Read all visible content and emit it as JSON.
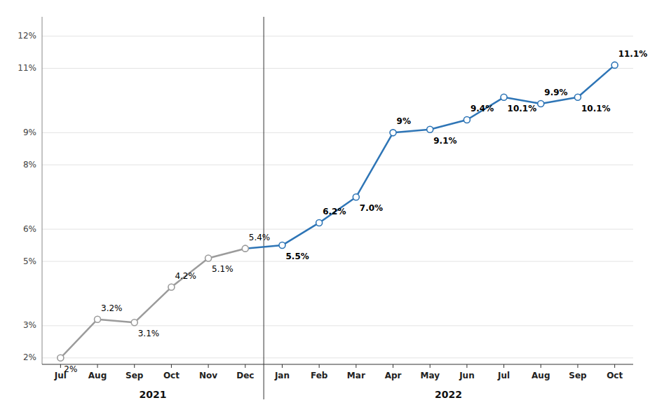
{
  "chart_data": {
    "type": "line",
    "categories": [
      "Jul",
      "Aug",
      "Sep",
      "Oct",
      "Nov",
      "Dec",
      "Jan",
      "Feb",
      "Mar",
      "Apr",
      "May",
      "Jun",
      "Jul",
      "Aug",
      "Sep",
      "Oct"
    ],
    "values": [
      2.0,
      3.2,
      3.1,
      4.2,
      5.1,
      5.4,
      5.5,
      6.2,
      7.0,
      9.0,
      9.1,
      9.4,
      10.1,
      9.9,
      10.1,
      11.1
    ],
    "value_labels": [
      "2%",
      "3.2%",
      "3.1%",
      "4.2%",
      "5.1%",
      "5.4%",
      "5.5%",
      "6.2%",
      "7.0%",
      "9%",
      "9.1%",
      "9.4%",
      "10.1%",
      "9.9%",
      "10.1%",
      "11.1%"
    ],
    "colors": [
      "#9B9B9B",
      "#9B9B9B",
      "#9B9B9B",
      "#9B9B9B",
      "#9B9B9B",
      "#9B9B9B",
      "#2E75B6",
      "#2E75B6",
      "#2E75B6",
      "#2E75B6",
      "#2E75B6",
      "#2E75B6",
      "#2E75B6",
      "#2E75B6",
      "#2E75B6",
      "#2E75B6"
    ],
    "annotations": [
      {
        "text": "2021"
      },
      {
        "text": "2022"
      }
    ],
    "marker": "circle",
    "data_labels": true,
    "grid": true,
    "ylim": [
      1.8,
      12.6
    ],
    "yticks": [
      {
        "value": 2,
        "label": "2%"
      },
      {
        "value": 3,
        "label": "3%"
      },
      {
        "value": 5,
        "label": "5%"
      },
      {
        "value": 6,
        "label": "6%"
      },
      {
        "value": 8,
        "label": "8%"
      },
      {
        "value": 9,
        "label": "9%"
      },
      {
        "value": 11,
        "label": "11%"
      },
      {
        "value": 12,
        "label": "12%"
      }
    ]
  }
}
